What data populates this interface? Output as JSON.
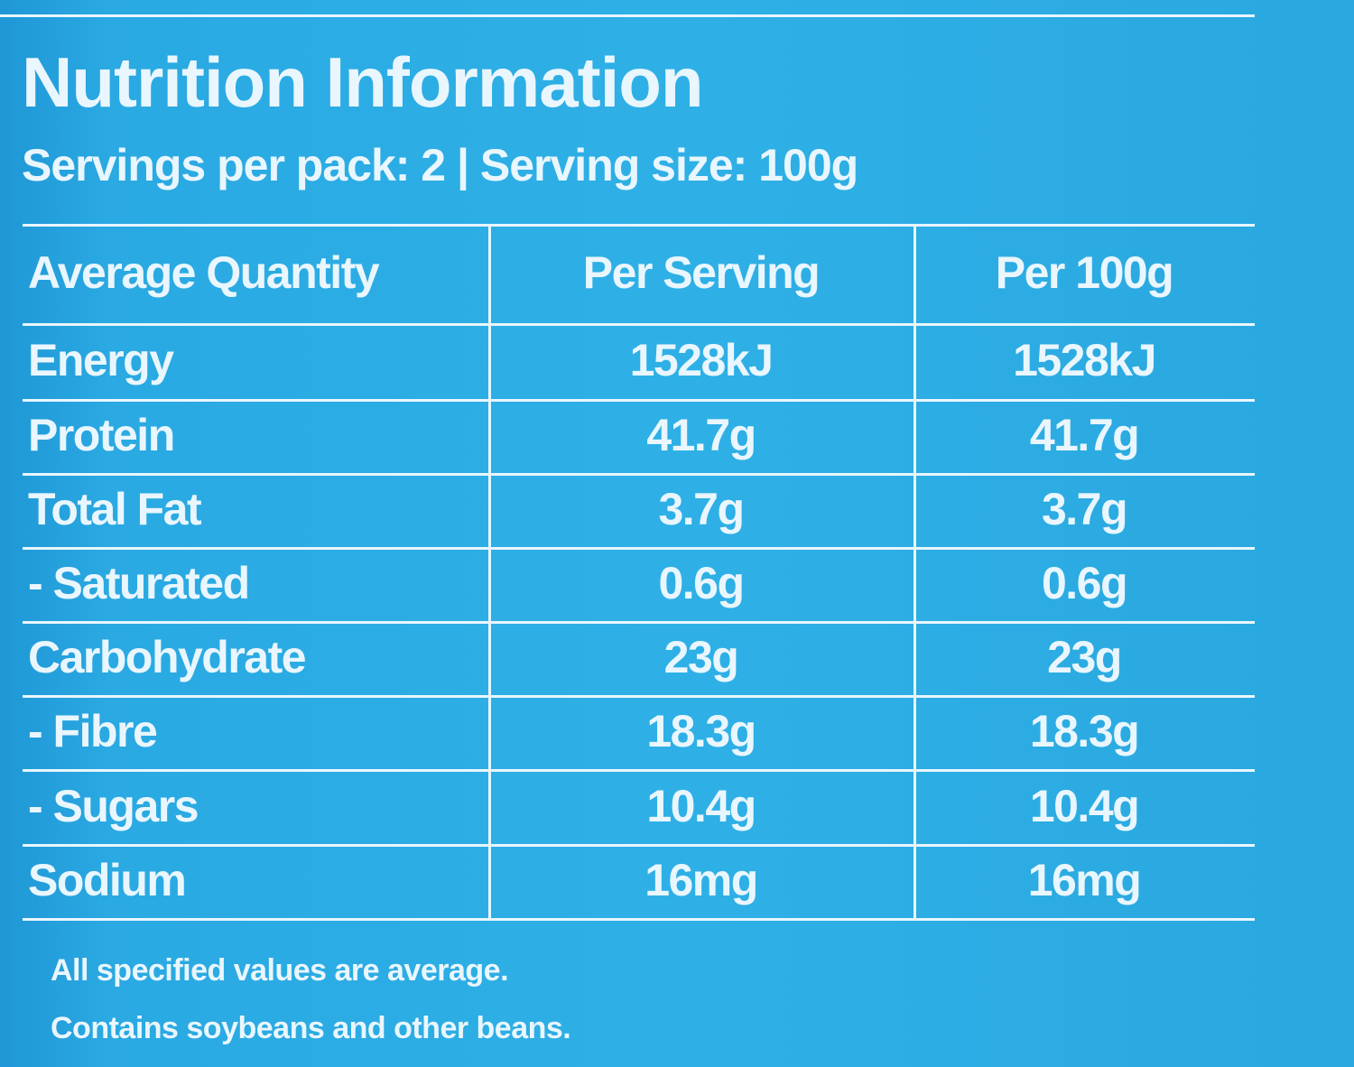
{
  "header": {
    "title": "Nutrition Information",
    "subtitle": "Servings per pack: 2 | Serving size: 100g"
  },
  "table": {
    "columns": [
      "Average Quantity",
      "Per Serving",
      "Per 100g"
    ],
    "rows": [
      [
        "Energy",
        "1528kJ",
        "1528kJ"
      ],
      [
        "Protein",
        "41.7g",
        "41.7g"
      ],
      [
        "Total Fat",
        "3.7g",
        "3.7g"
      ],
      [
        "- Saturated",
        "0.6g",
        "0.6g"
      ],
      [
        "Carbohydrate",
        "23g",
        "23g"
      ],
      [
        "- Fibre",
        "18.3g",
        "18.3g"
      ],
      [
        "- Sugars",
        "10.4g",
        "10.4g"
      ],
      [
        "Sodium",
        "16mg",
        "16mg"
      ]
    ]
  },
  "footnotes": [
    "All specified values are average.",
    "Contains soybeans and other beans."
  ]
}
